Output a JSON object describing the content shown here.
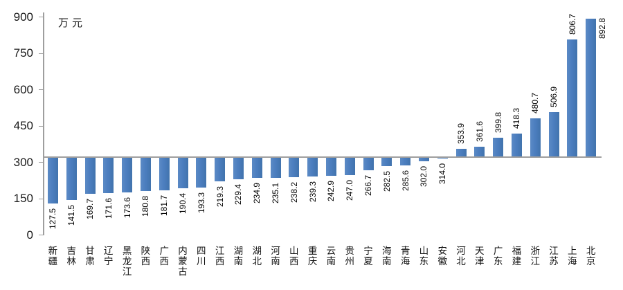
{
  "chart_data": {
    "type": "bar",
    "title": "",
    "unit_label": "万元",
    "categories": [
      "新疆",
      "吉林",
      "甘肃",
      "辽宁",
      "黑龙江",
      "陕西",
      "广西",
      "内蒙古",
      "四川",
      "江西",
      "湖南",
      "湖北",
      "河南",
      "山西",
      "重庆",
      "云南",
      "贵州",
      "宁夏",
      "海南",
      "青海",
      "山东",
      "安徽",
      "河北",
      "天津",
      "广东",
      "福建",
      "浙江",
      "江苏",
      "上海",
      "北京"
    ],
    "values": [
      127.5,
      141.5,
      169.7,
      171.6,
      173.6,
      180.8,
      181.7,
      190.4,
      193.3,
      219.3,
      229.4,
      234.9,
      235.1,
      238.2,
      239.3,
      242.9,
      247.0,
      266.7,
      282.5,
      285.6,
      302.0,
      314.0,
      353.9,
      361.6,
      399.8,
      418.3,
      480.7,
      506.9,
      806.7,
      892.8
    ],
    "yticks": [
      0,
      150,
      300,
      450,
      600,
      750,
      900
    ],
    "ylim": [
      0,
      900
    ],
    "axis_cross_value": 320,
    "grid": false,
    "legend_position": "none",
    "value_label_format": "one_decimal",
    "colors": {
      "bar": "#4C7EBF",
      "bar_light": "#5B8AC5",
      "bar_dark": "#4173AD",
      "axis": "#9E9E9E",
      "text": "#1A1A1A"
    }
  }
}
